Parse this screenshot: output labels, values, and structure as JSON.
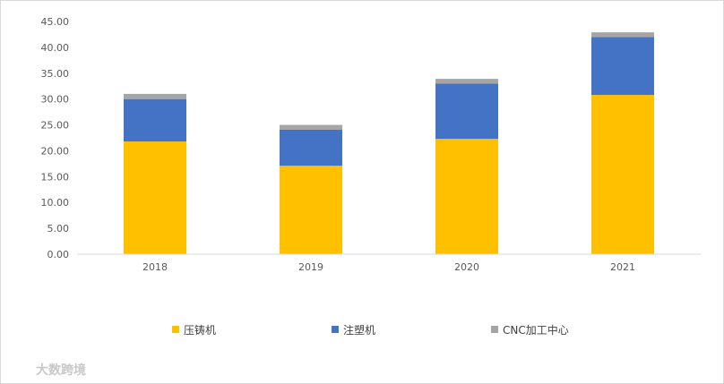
{
  "chart_data": {
    "type": "bar",
    "stacked": true,
    "categories": [
      "2018",
      "2019",
      "2020",
      "2021"
    ],
    "series": [
      {
        "name": "压铸机",
        "values": [
          21.8,
          17.1,
          22.3,
          30.8
        ],
        "color": "#FFC000"
      },
      {
        "name": "注塑机",
        "values": [
          8.2,
          7.0,
          10.7,
          11.2
        ],
        "color": "#4472C4"
      },
      {
        "name": "CNC加工中心",
        "values": [
          1.0,
          0.9,
          0.9,
          0.9
        ],
        "color": "#A5A5A5"
      }
    ],
    "y_ticks": [
      "0.00",
      "5.00",
      "10.00",
      "15.00",
      "20.00",
      "25.00",
      "30.00",
      "35.00",
      "40.00",
      "45.00"
    ],
    "ylim": [
      0,
      45
    ],
    "grid": false,
    "legend_position": "bottom",
    "title": "",
    "xlabel": "",
    "ylabel": ""
  },
  "watermark": "大数跨境"
}
